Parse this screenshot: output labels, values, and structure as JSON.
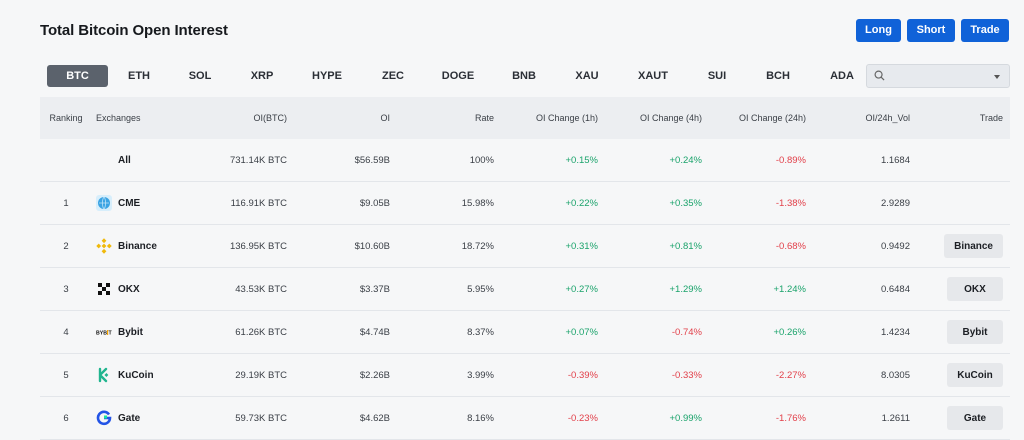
{
  "header": {
    "title": "Total Bitcoin Open Interest",
    "buttons": {
      "long": "Long",
      "short": "Short",
      "trade": "Trade"
    },
    "accent_color": "#1062d8"
  },
  "tabs": [
    "BTC",
    "ETH",
    "SOL",
    "XRP",
    "HYPE",
    "ZEC",
    "DOGE",
    "BNB",
    "XAU",
    "XAUT",
    "SUI",
    "BCH",
    "ADA"
  ],
  "active_tab": "BTC",
  "search": {
    "value": "",
    "icon": "search-icon"
  },
  "table": {
    "columns": {
      "ranking": "Ranking",
      "exchanges": "Exchanges",
      "oi_btc": "OI(BTC)",
      "oi": "OI",
      "rate": "Rate",
      "chg_1h": "OI Change (1h)",
      "chg_4h": "OI Change (4h)",
      "chg_24h": "OI Change (24h)",
      "oi_vol": "OI/24h_Vol",
      "trade": "Trade"
    },
    "all_row": {
      "label": "All",
      "oi_btc": "731.14K BTC",
      "oi": "$56.59B",
      "rate": "100%",
      "chg_1h": "+0.15%",
      "chg_4h": "+0.24%",
      "chg_24h": "-0.89%",
      "oi_vol": "1.1684"
    },
    "rows": [
      {
        "rank": "1",
        "exchange": "CME",
        "logo": "cme-logo-icon",
        "oi_btc": "116.91K BTC",
        "oi": "$9.05B",
        "rate": "15.98%",
        "chg_1h": "+0.22%",
        "chg_4h": "+0.35%",
        "chg_24h": "-1.38%",
        "oi_vol": "2.9289",
        "trade": ""
      },
      {
        "rank": "2",
        "exchange": "Binance",
        "logo": "binance-logo-icon",
        "oi_btc": "136.95K BTC",
        "oi": "$10.60B",
        "rate": "18.72%",
        "chg_1h": "+0.31%",
        "chg_4h": "+0.81%",
        "chg_24h": "-0.68%",
        "oi_vol": "0.9492",
        "trade": "Binance"
      },
      {
        "rank": "3",
        "exchange": "OKX",
        "logo": "okx-logo-icon",
        "oi_btc": "43.53K BTC",
        "oi": "$3.37B",
        "rate": "5.95%",
        "chg_1h": "+0.27%",
        "chg_4h": "+1.29%",
        "chg_24h": "+1.24%",
        "oi_vol": "0.6484",
        "trade": "OKX"
      },
      {
        "rank": "4",
        "exchange": "Bybit",
        "logo": "bybit-logo-icon",
        "oi_btc": "61.26K BTC",
        "oi": "$4.74B",
        "rate": "8.37%",
        "chg_1h": "+0.07%",
        "chg_4h": "-0.74%",
        "chg_24h": "+0.26%",
        "oi_vol": "1.4234",
        "trade": "Bybit"
      },
      {
        "rank": "5",
        "exchange": "KuCoin",
        "logo": "kucoin-logo-icon",
        "oi_btc": "29.19K BTC",
        "oi": "$2.26B",
        "rate": "3.99%",
        "chg_1h": "-0.39%",
        "chg_4h": "-0.33%",
        "chg_24h": "-2.27%",
        "oi_vol": "8.0305",
        "trade": "KuCoin"
      },
      {
        "rank": "6",
        "exchange": "Gate",
        "logo": "gate-logo-icon",
        "oi_btc": "59.73K BTC",
        "oi": "$4.62B",
        "rate": "8.16%",
        "chg_1h": "-0.23%",
        "chg_4h": "+0.99%",
        "chg_24h": "-1.76%",
        "oi_vol": "1.2611",
        "trade": "Gate"
      }
    ]
  },
  "colors": {
    "positive": "#1aa36b",
    "negative": "#e2404a",
    "active_tab_bg": "#5b626c"
  }
}
